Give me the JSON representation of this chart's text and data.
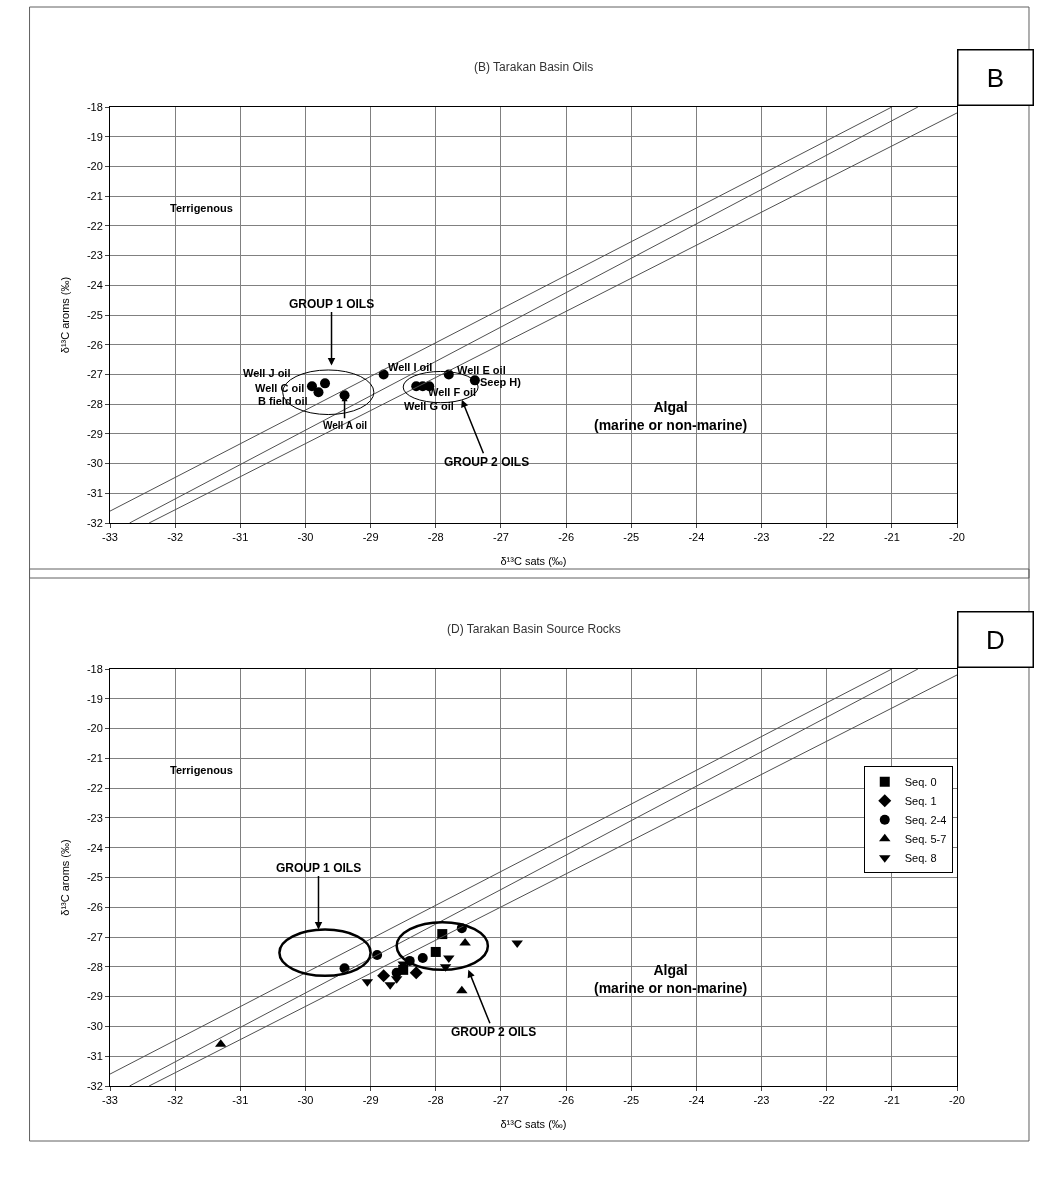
{
  "chart_data": [
    {
      "type": "scatter",
      "title": "(B) Tarakan Basin Oils",
      "xlabel": "δ¹³C sats (‰)",
      "ylabel": "δ¹³C aroms (‰)",
      "xlim": [
        -33,
        -20
      ],
      "xticks": [
        -33,
        -32,
        -31,
        -30,
        -29,
        -28,
        -27,
        -26,
        -25,
        -24,
        -23,
        -22,
        -21,
        -20
      ],
      "ylim": [
        -32,
        -18
      ],
      "yticks": [
        -32,
        -31,
        -30,
        -29,
        -28,
        -27,
        -26,
        -25,
        -24,
        -23,
        -22,
        -21,
        -20,
        -19,
        -18
      ],
      "grid": true,
      "legend": false,
      "marker": "circle",
      "series": [
        {
          "color": "#000000",
          "x": [
            -29.9,
            -29.8,
            -29.7,
            -29.4,
            -28.8,
            -28.3,
            -28.2,
            -28.1,
            -27.8,
            -27.4
          ],
          "values": [
            -27.4,
            -27.6,
            -27.3,
            -27.7,
            -27.0,
            -27.4,
            -27.4,
            -27.4,
            -27.0,
            -27.2
          ]
        },
        {
          "type": "line",
          "marker": "none",
          "color": "#505050",
          "x": [
            -33,
            -21.0
          ],
          "values": [
            -31.6,
            -18
          ]
        },
        {
          "type": "line",
          "marker": "none",
          "color": "#505050",
          "x": [
            -32.7,
            -20.6
          ],
          "values": [
            -32,
            -18
          ]
        },
        {
          "type": "line",
          "marker": "none",
          "color": "#505050",
          "x": [
            -32.4,
            -20
          ],
          "values": [
            -32,
            -18.2
          ]
        }
      ],
      "annotations": [
        "Well J oil",
        "Well C oil",
        "B field oil",
        {
          "text": "Well A oil",
          "x": -29.4,
          "y": -27.7
        },
        "Well I oil",
        "Well E oil",
        "Seep H)",
        "Well F oil",
        "Well G oil",
        "GROUP 1 OILS",
        "GROUP 2 OILS",
        "Terrigenous",
        "Algal\n(marine or non-marine)",
        "B"
      ]
    },
    {
      "type": "scatter",
      "title": "(D) Tarakan Basin Source Rocks",
      "xlabel": "δ¹³C sats (‰)",
      "ylabel": "δ¹³C aroms (‰)",
      "xlim": [
        -33,
        -20
      ],
      "xticks": [
        -33,
        -32,
        -31,
        -30,
        -29,
        -28,
        -27,
        -26,
        -25,
        -24,
        -23,
        -22,
        -21,
        -20
      ],
      "ylim": [
        -32,
        -18
      ],
      "yticks": [
        -32,
        -31,
        -30,
        -29,
        -28,
        -27,
        -26,
        -25,
        -24,
        -23,
        -22,
        -21,
        -20,
        -19,
        -18
      ],
      "grid": true,
      "legend": "right",
      "series": [
        {
          "name": "Seq. 0",
          "marker": "square",
          "color": "#000000",
          "x": [
            -27.9,
            -28.0,
            -28.5
          ],
          "values": [
            -26.9,
            -27.5,
            -28.1
          ]
        },
        {
          "name": "Seq. 1",
          "marker": "diamond",
          "color": "#000000",
          "x": [
            -28.3,
            -28.8
          ],
          "values": [
            -28.2,
            -28.3
          ]
        },
        {
          "name": "Seq. 2-4",
          "marker": "circle",
          "color": "#000000",
          "x": [
            -28.9,
            -29.4,
            -28.2,
            -28.4,
            -27.6,
            -28.6
          ],
          "values": [
            -27.6,
            -28.05,
            -27.7,
            -27.8,
            -26.7,
            -28.2
          ]
        },
        {
          "name": "Seq. 5-7",
          "marker": "triangle",
          "color": "#000000",
          "x": [
            -27.55,
            -27.6,
            -31.3
          ],
          "values": [
            -27.2,
            -28.8,
            -30.6
          ]
        },
        {
          "name": "Seq. 8",
          "marker": "triangle-down",
          "color": "#000000",
          "x": [
            -29.05,
            -28.7,
            -28.5,
            -27.8,
            -27.85,
            -26.75,
            -28.6
          ],
          "values": [
            -28.5,
            -28.6,
            -27.9,
            -27.7,
            -28.0,
            -27.2,
            -28.4
          ]
        },
        {
          "type": "line",
          "marker": "none",
          "color": "#505050",
          "x": [
            -33,
            -21.0
          ],
          "values": [
            -31.6,
            -18
          ]
        },
        {
          "type": "line",
          "marker": "none",
          "color": "#505050",
          "x": [
            -32.7,
            -20.6
          ],
          "values": [
            -32,
            -18
          ]
        },
        {
          "type": "line",
          "marker": "none",
          "color": "#505050",
          "x": [
            -32.4,
            -20
          ],
          "values": [
            -32,
            -18.2
          ]
        }
      ],
      "annotations": [
        "GROUP 1 OILS",
        "GROUP 2 OILS",
        "Terrigenous",
        "Algal\n(marine or non-marine)",
        "D"
      ]
    }
  ]
}
